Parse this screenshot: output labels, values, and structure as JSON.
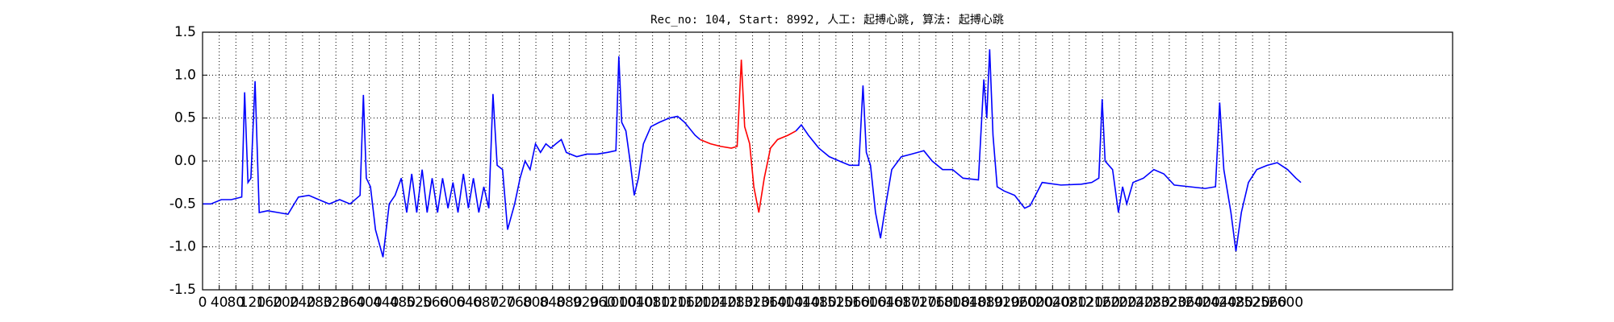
{
  "chart_data": {
    "type": "line",
    "title": "Rec_no: 104, Start: 8992, 人工: 起搏心跳, 算法: 起搏心跳",
    "grid": true,
    "xlim": [
      0,
      3000
    ],
    "ylim": [
      -1.5,
      1.5
    ],
    "xticks": [
      0,
      40,
      80,
      120,
      160,
      200,
      240,
      280,
      320,
      360,
      400,
      440,
      480,
      520,
      560,
      600,
      640,
      680,
      720,
      760,
      800,
      840,
      880,
      920,
      960,
      1000,
      1040,
      1080,
      1120,
      1160,
      1200,
      1240,
      1280,
      1320,
      1360,
      1400,
      1440,
      1480,
      1520,
      1560,
      1600,
      1640,
      1680,
      1720,
      1760,
      1800,
      1840,
      1880,
      1920,
      1960,
      2000,
      2040,
      2080,
      2120,
      2160,
      2200,
      2240,
      2280,
      2320,
      2360,
      2400,
      2440,
      2480,
      2520,
      2560,
      2600
    ],
    "yticks": [
      1.5,
      {
        "value": 1.0,
        "label": "1.0"
      },
      0.5,
      {
        "value": 0.0,
        "label": "0.0"
      },
      -0.5,
      {
        "value": -1.0,
        "label": "-1.0"
      },
      -1.5
    ],
    "series": [
      {
        "color": "#0000ff",
        "x": [
          0,
          20,
          45,
          69,
          94,
          101,
          109,
          116,
          126,
          136,
          156,
          181,
          205,
          230,
          255,
          279,
          304,
          329,
          354,
          378,
          386,
          393,
          403,
          415,
          433,
          448,
          462,
          477,
          490,
          502,
          514,
          527,
          539,
          551,
          564,
          576,
          589,
          601,
          613,
          626,
          638,
          650,
          663,
          675,
          687,
          697,
          707,
          720,
          732,
          749,
          762,
          774,
          786,
          799,
          811,
          824,
          836,
          848,
          861,
          873,
          898,
          922,
          947,
          972,
          992,
          999,
          1006,
          1016,
          1026,
          1036,
          1046,
          1058,
          1076,
          1096,
          1120,
          1140,
          1157,
          1182,
          1194
        ],
        "values": [
          -0.5,
          -0.5,
          -0.45,
          -0.45,
          -0.42,
          0.8,
          -0.25,
          -0.2,
          0.93,
          -0.6,
          -0.58,
          -0.6,
          -0.62,
          -0.42,
          -0.4,
          -0.45,
          -0.5,
          -0.45,
          -0.5,
          -0.4,
          0.77,
          -0.2,
          -0.3,
          -0.8,
          -1.12,
          -0.5,
          -0.4,
          -0.2,
          -0.6,
          -0.15,
          -0.6,
          -0.1,
          -0.6,
          -0.2,
          -0.6,
          -0.2,
          -0.55,
          -0.25,
          -0.6,
          -0.15,
          -0.55,
          -0.2,
          -0.6,
          -0.3,
          -0.55,
          0.78,
          -0.05,
          -0.1,
          -0.8,
          -0.5,
          -0.2,
          0.0,
          -0.1,
          0.2,
          0.1,
          0.2,
          0.15,
          0.2,
          0.25,
          0.1,
          0.05,
          0.08,
          0.08,
          0.1,
          0.12,
          1.22,
          0.45,
          0.35,
          0.0,
          -0.4,
          -0.2,
          0.2,
          0.4,
          0.45,
          0.5,
          0.52,
          0.45,
          0.3,
          0.25
        ]
      },
      {
        "color": "#ff0000",
        "x": [
          1194,
          1219,
          1244,
          1269,
          1283,
          1293,
          1301,
          1313,
          1323,
          1335,
          1348,
          1363,
          1380,
          1405,
          1424
        ],
        "values": [
          0.25,
          0.2,
          0.17,
          0.15,
          0.17,
          1.18,
          0.4,
          0.2,
          -0.3,
          -0.6,
          -0.2,
          0.15,
          0.25,
          0.3,
          0.35
        ]
      },
      {
        "color": "#0000ff",
        "x": [
          1424,
          1437,
          1454,
          1479,
          1504,
          1528,
          1553,
          1575,
          1585,
          1593,
          1603,
          1615,
          1627,
          1640,
          1654,
          1677,
          1701,
          1731,
          1751,
          1776,
          1800,
          1825,
          1862,
          1875,
          1882,
          1889,
          1897,
          1907,
          1924,
          1949,
          1973,
          1986,
          2015,
          2060,
          2109,
          2134,
          2151,
          2159,
          2166,
          2184,
          2198,
          2208,
          2218,
          2233,
          2258,
          2283,
          2307,
          2332,
          2369,
          2406,
          2431,
          2441,
          2451,
          2468,
          2480,
          2493,
          2510,
          2530,
          2555,
          2579,
          2604,
          2624,
          2636
        ],
        "values": [
          0.35,
          0.42,
          0.3,
          0.15,
          0.05,
          0.0,
          -0.05,
          -0.05,
          0.88,
          0.1,
          -0.05,
          -0.6,
          -0.9,
          -0.5,
          -0.1,
          0.05,
          0.08,
          0.12,
          0.0,
          -0.1,
          -0.1,
          -0.2,
          -0.22,
          0.95,
          0.5,
          1.3,
          0.3,
          -0.3,
          -0.35,
          -0.4,
          -0.55,
          -0.52,
          -0.25,
          -0.28,
          -0.27,
          -0.25,
          -0.2,
          0.72,
          0.0,
          -0.1,
          -0.6,
          -0.3,
          -0.5,
          -0.25,
          -0.2,
          -0.1,
          -0.15,
          -0.28,
          -0.3,
          -0.32,
          -0.3,
          0.68,
          -0.1,
          -0.6,
          -1.05,
          -0.6,
          -0.25,
          -0.1,
          -0.05,
          -0.02,
          -0.1,
          -0.2,
          -0.25
        ]
      }
    ]
  }
}
